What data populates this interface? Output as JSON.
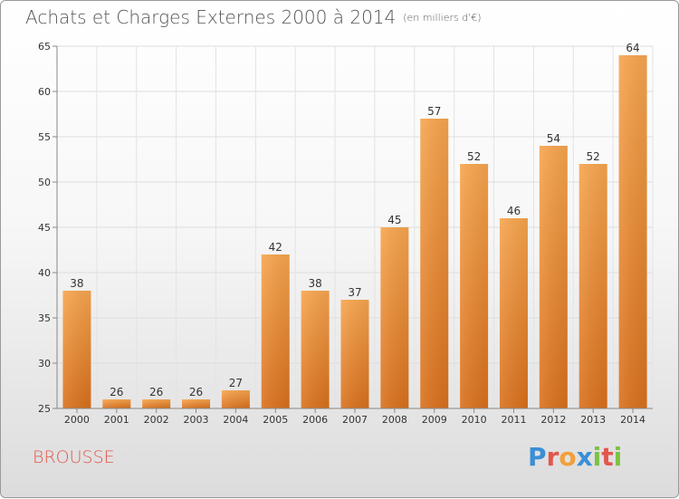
{
  "title": "Achats et Charges Externes 2000 à 2014",
  "subtitle": "(en milliers d'€)",
  "commune": "BROUSSE",
  "logo": {
    "letters": [
      "P",
      "r",
      "o",
      "x",
      "i",
      "t",
      "i"
    ],
    "colors": [
      "#3a8fd6",
      "#e2574c",
      "#f2a03a",
      "#3a8fd6",
      "#7cc242",
      "#e2574c",
      "#7cc242"
    ]
  },
  "colors": {
    "bar": "#f08a2a",
    "label": "#e2574c"
  },
  "chart_data": {
    "type": "bar",
    "categories": [
      "2000",
      "2001",
      "2002",
      "2003",
      "2004",
      "2005",
      "2006",
      "2007",
      "2008",
      "2009",
      "2010",
      "2011",
      "2012",
      "2013",
      "2014"
    ],
    "values": [
      38,
      26,
      26,
      26,
      27,
      42,
      38,
      37,
      45,
      57,
      52,
      46,
      54,
      52,
      64
    ],
    "title": "Achats et Charges Externes 2000 à 2014",
    "ylim": [
      25,
      65
    ],
    "yticks": [
      25,
      30,
      35,
      40,
      45,
      50,
      55,
      60,
      65
    ],
    "grid": true,
    "legend": "none"
  }
}
